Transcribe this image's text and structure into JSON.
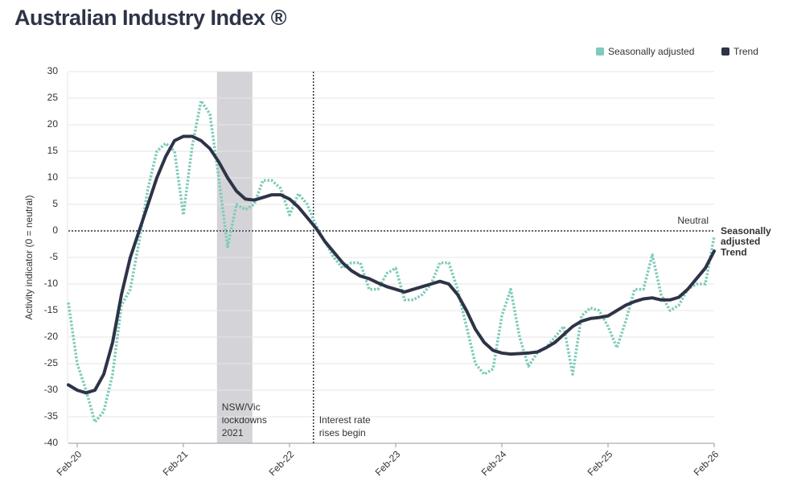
{
  "chart_data": {
    "type": "line",
    "title": "Australian Industry Index ®",
    "y_label": "Activity indicator (0 = neutral)",
    "categories": [
      null,
      "Feb-20",
      null,
      null,
      null,
      null,
      null,
      null,
      null,
      null,
      null,
      null,
      null,
      "Feb-21",
      null,
      null,
      null,
      null,
      null,
      null,
      null,
      null,
      null,
      null,
      null,
      "Feb-22",
      null,
      null,
      null,
      null,
      null,
      null,
      null,
      null,
      null,
      null,
      null,
      "Feb-23",
      null,
      null,
      null,
      null,
      null,
      null,
      null,
      null,
      null,
      null,
      null,
      "Feb-24",
      null,
      null,
      null,
      null,
      null,
      null,
      null,
      null,
      null,
      null,
      null,
      "Feb-25",
      null,
      null,
      null,
      null,
      null,
      null,
      null,
      null,
      null,
      null,
      null,
      "Feb-26"
    ],
    "series": [
      {
        "name": "Seasonally adjusted",
        "end_label": [
          "Seasonally",
          "adjusted"
        ],
        "color": "#7ecbb9",
        "style": "dotted",
        "values": [
          -13.5,
          -25,
          -30,
          -36,
          -34,
          -27,
          -14,
          -11,
          -2,
          8,
          15,
          16.5,
          15,
          3,
          16,
          24.5,
          22,
          10,
          -3,
          5,
          4,
          5,
          9.5,
          9.5,
          8,
          3,
          7,
          5,
          1,
          -2,
          -5,
          -7,
          -6,
          -6,
          -11,
          -11,
          -8,
          -7,
          -13,
          -13,
          -12,
          -10,
          -6,
          -6,
          -11,
          -18,
          -25,
          -27,
          -26,
          -16,
          -11,
          -20,
          -25.5,
          -23,
          -22,
          -20,
          -18,
          -27,
          -16,
          -14.5,
          -15,
          -18,
          -22,
          -17,
          -11,
          -11,
          -4.5,
          -12,
          -15,
          -14,
          -11,
          -10,
          -10,
          -1
        ]
      },
      {
        "name": "Trend",
        "end_label": [
          "Trend"
        ],
        "color": "#2e3347",
        "style": "solid",
        "values": [
          -29,
          -30,
          -30.5,
          -30,
          -27,
          -21,
          -12,
          -5,
          0,
          5,
          10,
          14,
          17,
          17.8,
          17.8,
          17,
          15.5,
          13,
          10,
          7.5,
          6,
          5.8,
          6.3,
          6.8,
          6.8,
          6,
          4.5,
          2.5,
          0.5,
          -2,
          -4,
          -6,
          -7.5,
          -8.5,
          -9,
          -9.8,
          -10.5,
          -11,
          -11.5,
          -11,
          -10.5,
          -10,
          -9.5,
          -10,
          -12,
          -15,
          -18.5,
          -21,
          -22.5,
          -23,
          -23.2,
          -23.1,
          -23,
          -22.8,
          -22,
          -21,
          -19.5,
          -18,
          -17,
          -16.5,
          -16.3,
          -16,
          -15,
          -14,
          -13.3,
          -12.8,
          -12.6,
          -13,
          -13,
          -12.5,
          -11,
          -9,
          -7,
          -3.8
        ]
      }
    ],
    "ylim": [
      -40,
      30
    ],
    "yticks": [
      -40,
      -35,
      -30,
      -25,
      -20,
      -15,
      -10,
      -5,
      0,
      5,
      10,
      15,
      20,
      25,
      30
    ],
    "grid": true,
    "legend": "top-right",
    "reference_line": {
      "value": 0,
      "label": "Neutral"
    },
    "annotations": [
      {
        "kind": "band",
        "x_range": [
          16.8,
          20.8
        ],
        "text": [
          "NSW/Vic",
          "lockdowns",
          "2021"
        ],
        "color": "#d4d4d8"
      },
      {
        "kind": "line",
        "x": 27.7,
        "text": [
          "Interest rate",
          "rises begin"
        ]
      }
    ]
  }
}
